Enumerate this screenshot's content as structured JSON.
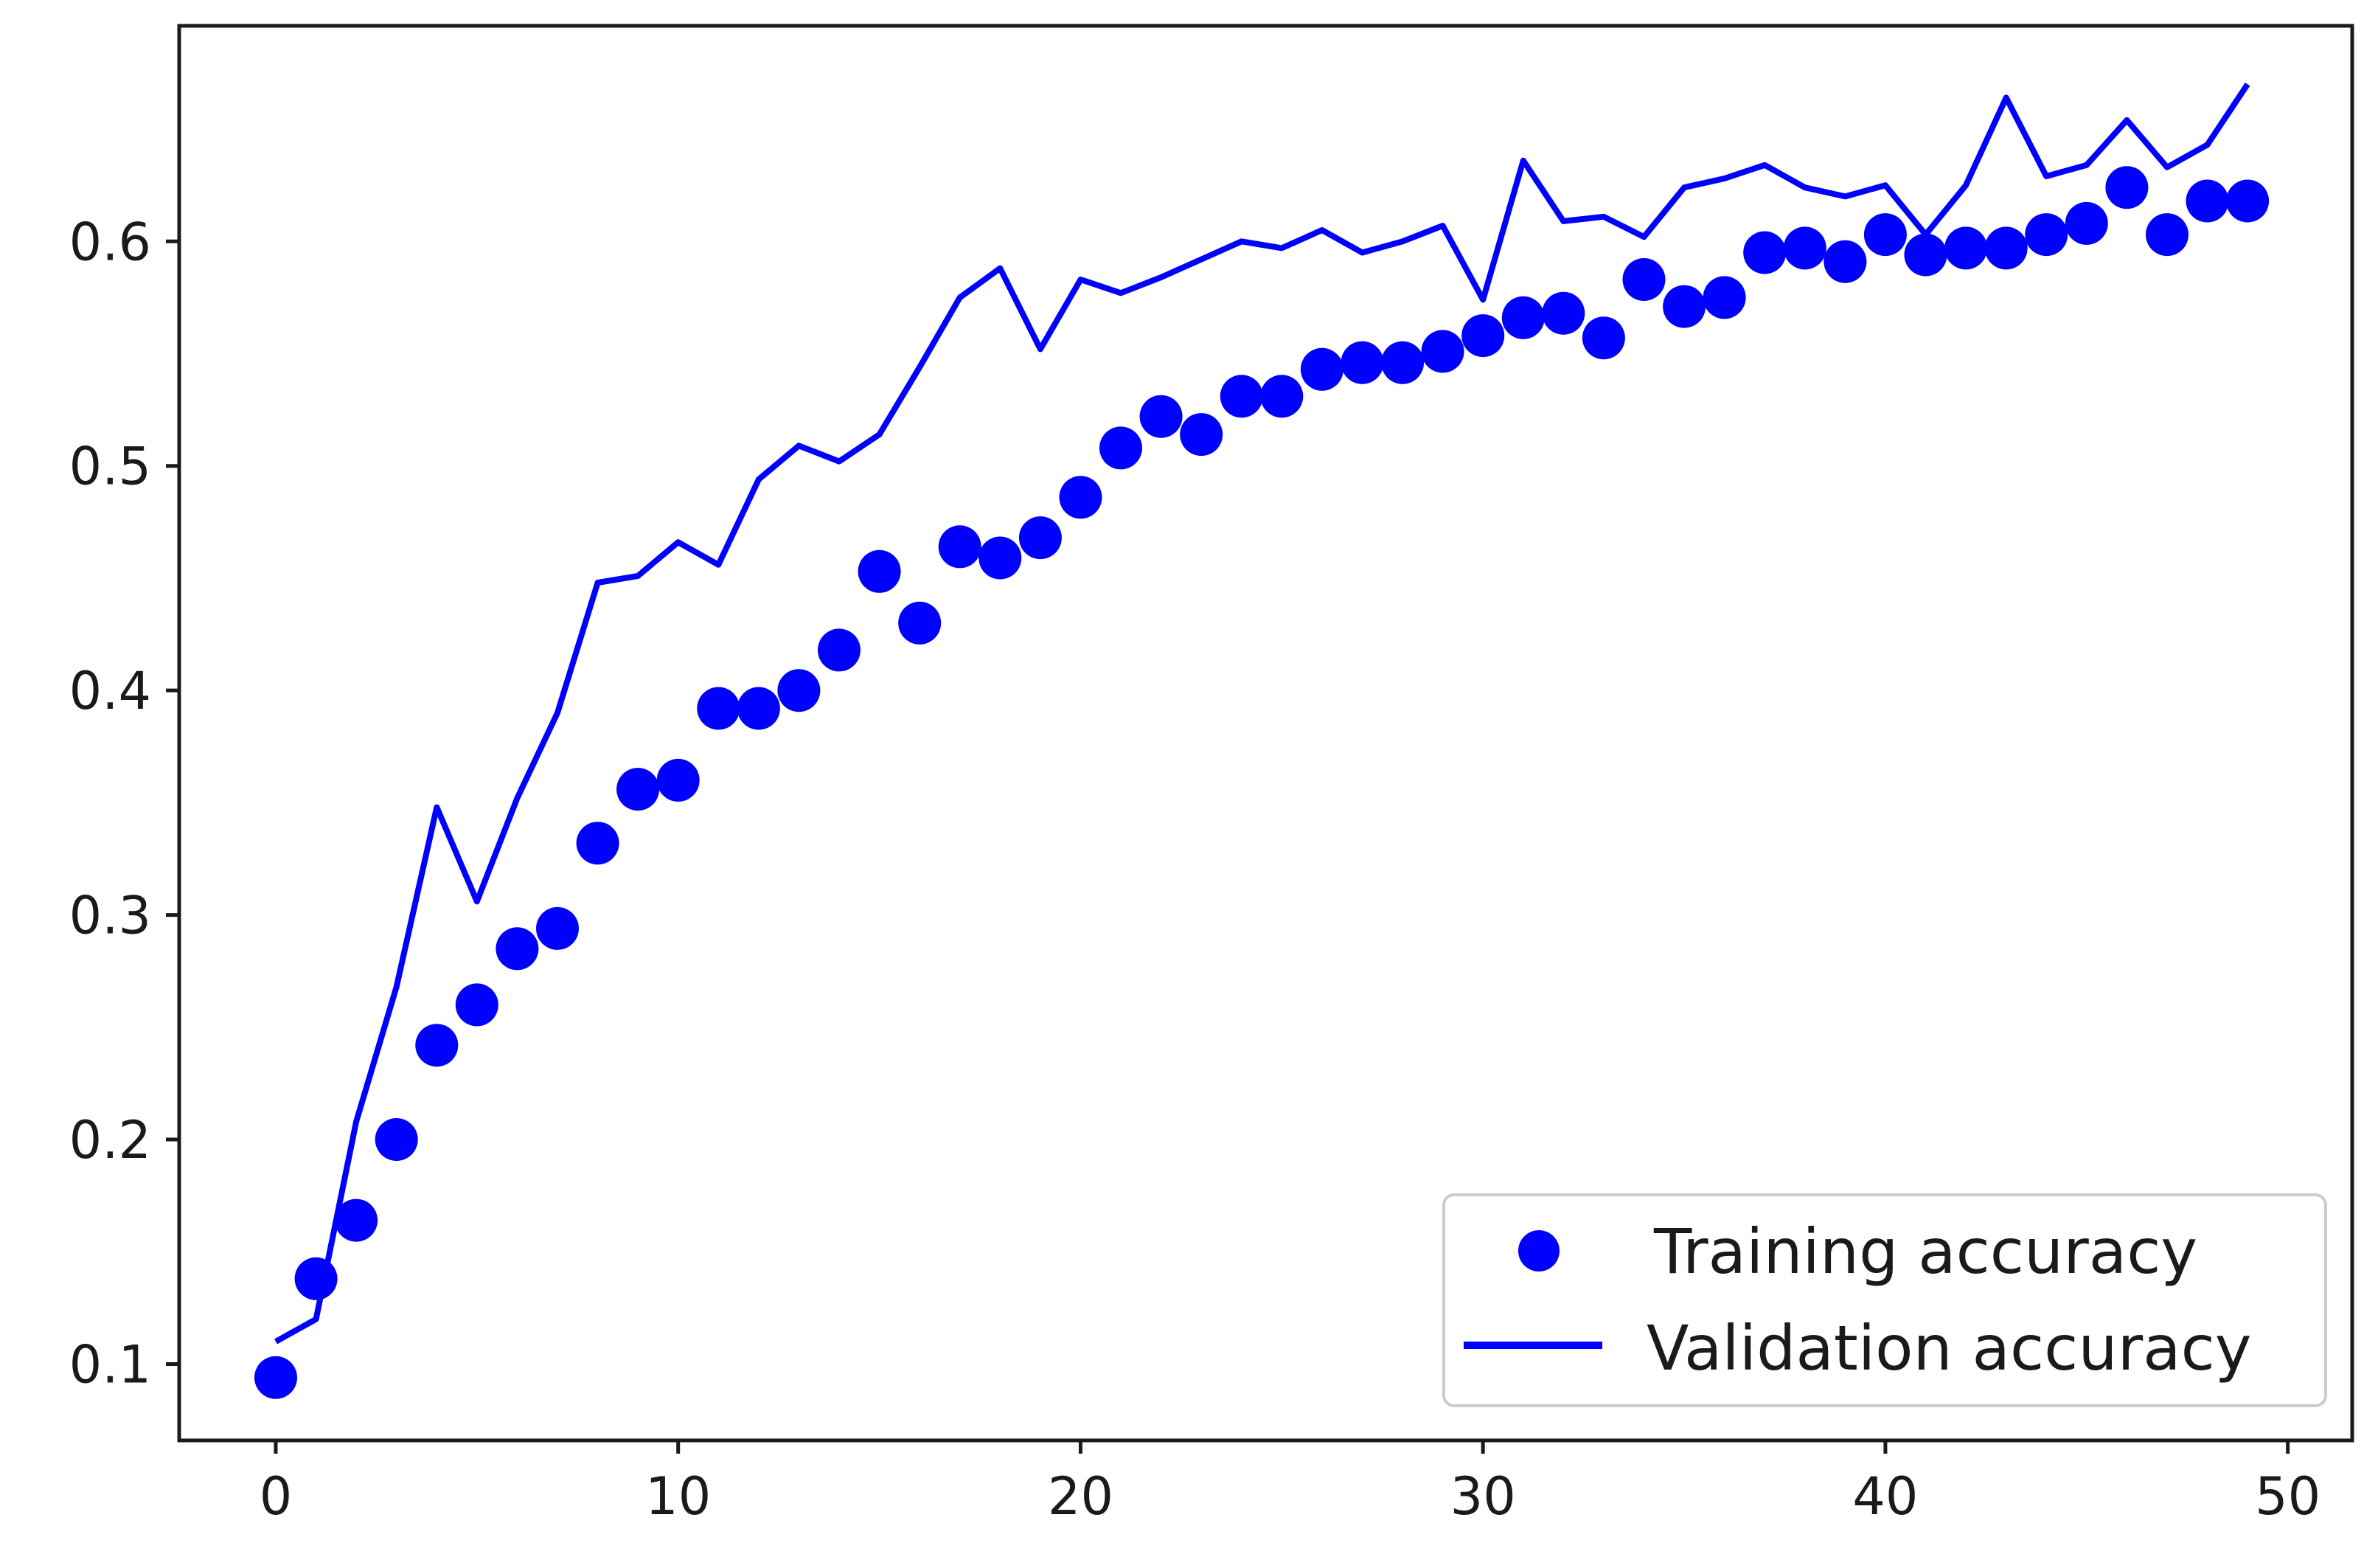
{
  "chart_data": {
    "type": "line",
    "title": "",
    "xlabel": "",
    "ylabel": "",
    "xlim": [
      -2.4,
      51.6
    ],
    "ylim": [
      0.066,
      0.696
    ],
    "xticks": [
      0,
      10,
      20,
      30,
      40,
      50
    ],
    "yticks": [
      0.1,
      0.2,
      0.3,
      0.4,
      0.5,
      0.6
    ],
    "x_tick_labels": [
      "0",
      "10",
      "20",
      "30",
      "40",
      "50"
    ],
    "y_tick_labels": [
      "0.1",
      "0.2",
      "0.3",
      "0.4",
      "0.5",
      "0.6"
    ],
    "grid": false,
    "legend_position": "lower-right",
    "series": [
      {
        "name": "Training accuracy",
        "style": "markers",
        "marker": "circle",
        "color": "#0000ff",
        "x": [
          0,
          1,
          2,
          3,
          4,
          5,
          6,
          7,
          8,
          9,
          10,
          11,
          12,
          13,
          14,
          15,
          16,
          17,
          18,
          19,
          20,
          21,
          22,
          23,
          24,
          25,
          26,
          27,
          28,
          29,
          30,
          31,
          32,
          33,
          34,
          35,
          36,
          37,
          38,
          39,
          40,
          41,
          42,
          43,
          44,
          45,
          46,
          47,
          48,
          49
        ],
        "values": [
          0.094,
          0.138,
          0.164,
          0.2,
          0.242,
          0.26,
          0.285,
          0.294,
          0.332,
          0.356,
          0.36,
          0.392,
          0.392,
          0.4,
          0.418,
          0.453,
          0.43,
          0.464,
          0.459,
          0.468,
          0.486,
          0.508,
          0.522,
          0.514,
          0.531,
          0.531,
          0.543,
          0.546,
          0.546,
          0.551,
          0.558,
          0.566,
          0.568,
          0.557,
          0.583,
          0.571,
          0.575,
          0.595,
          0.597,
          0.591,
          0.603,
          0.594,
          0.597,
          0.597,
          0.603,
          0.608,
          0.624,
          0.603,
          0.618,
          0.618
        ]
      },
      {
        "name": "Validation accuracy",
        "style": "line",
        "color": "#0000ff",
        "x": [
          0,
          1,
          2,
          3,
          4,
          5,
          6,
          7,
          8,
          9,
          10,
          11,
          12,
          13,
          14,
          15,
          16,
          17,
          18,
          19,
          20,
          21,
          22,
          23,
          24,
          25,
          26,
          27,
          28,
          29,
          30,
          31,
          32,
          33,
          34,
          35,
          36,
          37,
          38,
          39,
          40,
          41,
          42,
          43,
          44,
          45,
          46,
          47,
          48,
          49
        ],
        "values": [
          0.11,
          0.12,
          0.208,
          0.268,
          0.348,
          0.306,
          0.352,
          0.39,
          0.448,
          0.451,
          0.466,
          0.456,
          0.494,
          0.509,
          0.502,
          0.514,
          0.544,
          0.575,
          0.588,
          0.552,
          0.583,
          0.577,
          0.584,
          0.592,
          0.6,
          0.597,
          0.605,
          0.595,
          0.6,
          0.607,
          0.574,
          0.636,
          0.609,
          0.611,
          0.602,
          0.624,
          0.628,
          0.634,
          0.624,
          0.62,
          0.625,
          0.603,
          0.625,
          0.664,
          0.629,
          0.634,
          0.654,
          0.633,
          0.643,
          0.67
        ]
      }
    ]
  },
  "legend": {
    "items": [
      "Training accuracy",
      "Validation accuracy"
    ]
  },
  "colors": {
    "series": "#0000ff",
    "axes": "#1a1a1a",
    "legend_border": "#cccccc",
    "background": "#ffffff"
  }
}
